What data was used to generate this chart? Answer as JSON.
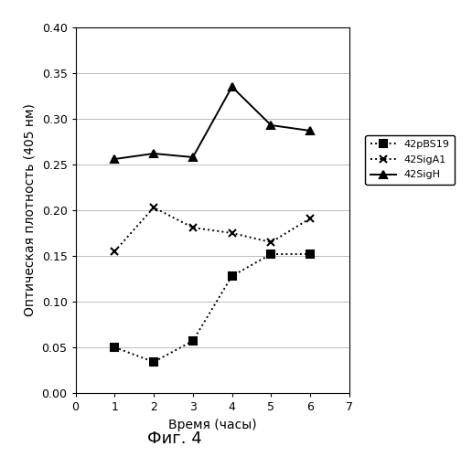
{
  "series": [
    {
      "label": "42pBS19",
      "x": [
        1,
        2,
        3,
        4,
        5,
        6
      ],
      "y": [
        0.05,
        0.034,
        0.057,
        0.128,
        0.152,
        0.152
      ],
      "marker": "s",
      "linestyle": "dotted",
      "color": "#000000"
    },
    {
      "label": "42SigA1",
      "x": [
        1,
        2,
        3,
        4,
        5,
        6
      ],
      "y": [
        0.155,
        0.203,
        0.181,
        0.175,
        0.165,
        0.191
      ],
      "marker": "x",
      "linestyle": "dotted",
      "color": "#000000"
    },
    {
      "label": "42SigH",
      "x": [
        1,
        2,
        3,
        4,
        5,
        6
      ],
      "y": [
        0.256,
        0.262,
        0.258,
        0.335,
        0.293,
        0.287
      ],
      "marker": "^",
      "linestyle": "solid",
      "color": "#000000"
    }
  ],
  "xlabel": "Время (часы)",
  "ylabel": "Оптическая плотность (405 нм)",
  "title": "Фиг. 4",
  "xlim": [
    0,
    7
  ],
  "ylim": [
    0,
    0.4
  ],
  "xticks": [
    0,
    1,
    2,
    3,
    4,
    5,
    6,
    7
  ],
  "yticks": [
    0,
    0.05,
    0.1,
    0.15,
    0.2,
    0.25,
    0.3,
    0.35,
    0.4
  ],
  "background_color": "#ffffff",
  "grid_color": "#bbbbbb",
  "legend_fontsize": 8,
  "axis_fontsize": 10,
  "title_fontsize": 13,
  "marker_size": 6,
  "linewidth": 1.4
}
